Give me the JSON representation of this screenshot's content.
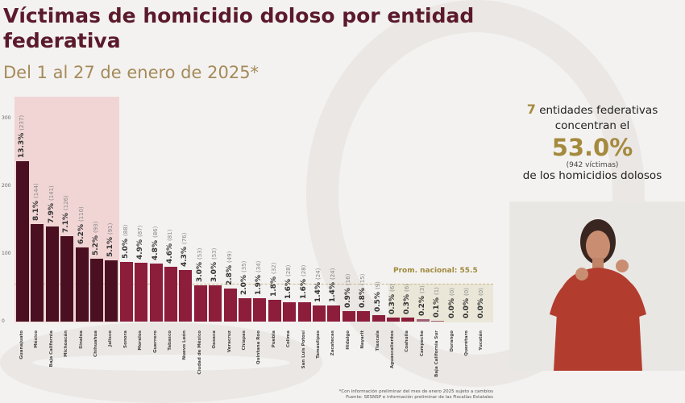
{
  "title": "Víctimas de homicidio doloso por entidad federativa",
  "subtitle": "Del 1 al 27 de enero de 2025*",
  "summary": {
    "count": "7",
    "line1_rest": "entidades federativas",
    "line2": "concentran el",
    "percent": "53.0%",
    "victims": "(942 víctimas)",
    "line3": "de los homicidios dolosos"
  },
  "footnote": {
    "line1": "*Con información preliminar del mes de enero 2025 sujeto a cambios",
    "line2": "Fuente: SESNSP e información preliminar de las Fiscalías Estatales"
  },
  "colors": {
    "top7": "#4a1022",
    "rest": "#8c1d3b",
    "accent": "#a58a3e"
  },
  "chart_data": {
    "type": "bar",
    "title": "Víctimas de homicidio doloso por entidad federativa",
    "ylim": [
      0,
      300
    ],
    "yticks": [
      "0",
      "100",
      "200",
      "300"
    ],
    "average": 55.5,
    "average_label": "Prom. nacional: 55.5",
    "highlighted_count": 7,
    "categories": [
      "Guanajuato",
      "México",
      "Baja California",
      "Michoacán",
      "Sinaloa",
      "Chihuahua",
      "Jalisco",
      "Sonora",
      "Morelos",
      "Guerrero",
      "Tabasco",
      "Nuevo León",
      "Ciudad de México",
      "Oaxaca",
      "Veracruz",
      "Chiapas",
      "Quintana Roo",
      "Puebla",
      "Colima",
      "San Luis Potosí",
      "Tamaulipas",
      "Zacatecas",
      "Hidalgo",
      "Nayarit",
      "Tlaxcala",
      "Aguascalientes",
      "Coahuila",
      "Campeche",
      "Baja California Sur",
      "Durango",
      "Querétaro",
      "Yucatán"
    ],
    "values": [
      237,
      144,
      141,
      126,
      110,
      93,
      91,
      88,
      87,
      86,
      81,
      76,
      53,
      53,
      49,
      35,
      34,
      32,
      28,
      28,
      24,
      24,
      16,
      15,
      9,
      6,
      6,
      3,
      1,
      0,
      0,
      0
    ],
    "percents": [
      "13.3%",
      "8.1%",
      "7.9%",
      "7.1%",
      "6.2%",
      "5.2%",
      "5.1%",
      "5.0%",
      "4.9%",
      "4.8%",
      "4.6%",
      "4.3%",
      "3.0%",
      "3.0%",
      "2.8%",
      "2.0%",
      "1.9%",
      "1.8%",
      "1.6%",
      "1.6%",
      "1.4%",
      "1.4%",
      "0.9%",
      "0.8%",
      "0.5%",
      "0.3%",
      "0.3%",
      "0.2%",
      "0.1%",
      "0.0%",
      "0.0%",
      "0.0%"
    ]
  }
}
